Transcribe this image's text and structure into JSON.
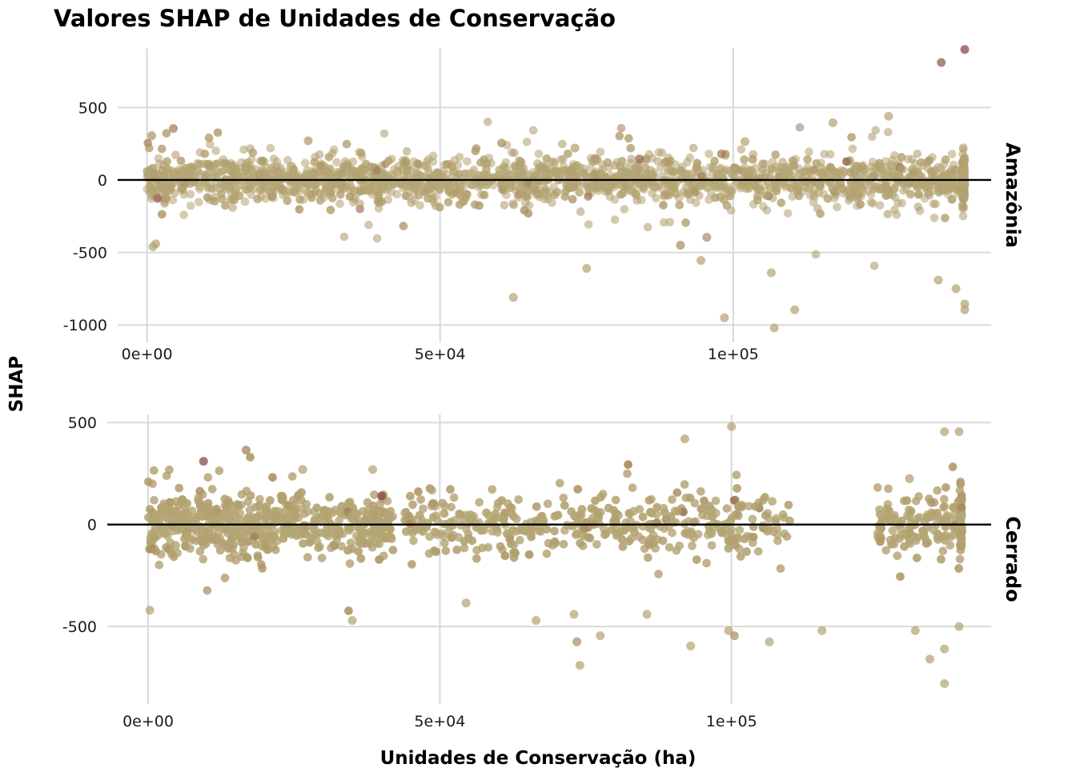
{
  "chart_data": {
    "type": "scatter",
    "title": "Valores SHAP de Unidades de Conservação",
    "xlabel": "Unidades de Conservação (ha)",
    "ylabel": "SHAP",
    "grid": true,
    "zero_line": true,
    "colors": {
      "low": "#b5a775",
      "mid": "#a88a5c",
      "high": "#7a2e3a"
    },
    "panels": [
      {
        "name": "Amazônia",
        "xlim": [
          -5000,
          144000
        ],
        "ylim": [
          -1120,
          910
        ],
        "x_ticks": [
          0,
          50000,
          100000
        ],
        "x_tick_labels": [
          "0e+00",
          "5e+04",
          "1e+05"
        ],
        "y_ticks": [
          -1000,
          -500,
          0,
          500
        ],
        "y_tick_labels": [
          "-1000",
          "-500",
          "0",
          "500"
        ],
        "highlight_points": [
          {
            "x": 139500,
            "y": 900,
            "c": 0.9
          },
          {
            "x": 135500,
            "y": 810,
            "c": 0.8
          },
          {
            "x": 126500,
            "y": 440,
            "c": 0.1
          },
          {
            "x": 117000,
            "y": 395,
            "c": 0.1
          },
          {
            "x": 4500,
            "y": 355,
            "c": 0.6
          },
          {
            "x": 800,
            "y": 305,
            "c": 0.4
          },
          {
            "x": 27500,
            "y": 270,
            "c": 0.3
          },
          {
            "x": 60500,
            "y": 255,
            "c": 0.5
          },
          {
            "x": 102000,
            "y": 265,
            "c": 0.1
          },
          {
            "x": 98000,
            "y": 180,
            "c": 0.6
          },
          {
            "x": 84000,
            "y": 145,
            "c": 0.7
          },
          {
            "x": 73000,
            "y": 220,
            "c": 0.2
          },
          {
            "x": 62500,
            "y": -810,
            "c": 0.1
          },
          {
            "x": 107000,
            "y": -1020,
            "c": 0.1
          },
          {
            "x": 98500,
            "y": -950,
            "c": 0.1
          },
          {
            "x": 110500,
            "y": -895,
            "c": 0.1
          },
          {
            "x": 139500,
            "y": -895,
            "c": 0.1
          },
          {
            "x": 139500,
            "y": -855,
            "c": 0.1
          },
          {
            "x": 138000,
            "y": -750,
            "c": 0.1
          },
          {
            "x": 135000,
            "y": -690,
            "c": 0.1
          },
          {
            "x": 106500,
            "y": -640,
            "c": 0.1
          },
          {
            "x": 75000,
            "y": -610,
            "c": 0.1
          },
          {
            "x": 94500,
            "y": -555,
            "c": 0.1
          },
          {
            "x": 1000,
            "y": -460,
            "c": 0.1
          },
          {
            "x": 1500,
            "y": -440,
            "c": 0.1
          },
          {
            "x": 91000,
            "y": -450,
            "c": 0.5
          },
          {
            "x": 95500,
            "y": -395,
            "c": 0.5
          }
        ]
      },
      {
        "name": "Cerrado",
        "xlim": [
          -7000,
          144500
        ],
        "ylim": [
          -880,
          540
        ],
        "x_ticks": [
          0,
          50000,
          100000
        ],
        "x_tick_labels": [
          "0e+00",
          "5e+04",
          "1e+05"
        ],
        "y_ticks": [
          -500,
          0,
          500
        ],
        "y_tick_labels": [
          "-500",
          "0",
          "500"
        ],
        "highlight_points": [
          {
            "x": 100000,
            "y": 480,
            "c": 0.1
          },
          {
            "x": 92000,
            "y": 420,
            "c": 0.2
          },
          {
            "x": 136500,
            "y": 455,
            "c": 0.1
          },
          {
            "x": 139000,
            "y": 455,
            "c": 0.1
          },
          {
            "x": 16800,
            "y": 365,
            "c": 0.6
          },
          {
            "x": 9500,
            "y": 310,
            "c": 0.9
          },
          {
            "x": 40000,
            "y": 140,
            "c": 0.9
          },
          {
            "x": 130500,
            "y": 225,
            "c": 0.2
          },
          {
            "x": 26500,
            "y": 270,
            "c": 0.2
          },
          {
            "x": 38500,
            "y": 270,
            "c": 0.1
          },
          {
            "x": 136500,
            "y": -780,
            "c": 0.1
          },
          {
            "x": 74000,
            "y": -690,
            "c": 0.1
          },
          {
            "x": 134000,
            "y": -660,
            "c": 0.1
          },
          {
            "x": 136500,
            "y": -610,
            "c": 0.1
          },
          {
            "x": 93000,
            "y": -595,
            "c": 0.1
          },
          {
            "x": 73500,
            "y": -575,
            "c": 0.5
          },
          {
            "x": 106500,
            "y": -575,
            "c": 0.1
          },
          {
            "x": 100500,
            "y": -545,
            "c": 0.5
          },
          {
            "x": 77500,
            "y": -545,
            "c": 0.1
          },
          {
            "x": 99500,
            "y": -520,
            "c": 0.1
          },
          {
            "x": 115500,
            "y": -520,
            "c": 0.1
          },
          {
            "x": 131500,
            "y": -520,
            "c": 0.1
          },
          {
            "x": 139000,
            "y": -500,
            "c": 0.1
          },
          {
            "x": 35000,
            "y": -470,
            "c": 0.1
          },
          {
            "x": 66500,
            "y": -470,
            "c": 0.1
          },
          {
            "x": 85500,
            "y": -440,
            "c": 0.1
          },
          {
            "x": 73000,
            "y": -440,
            "c": 0.1
          },
          {
            "x": 300,
            "y": -420,
            "c": 0.1
          },
          {
            "x": 54500,
            "y": -385,
            "c": 0.1
          }
        ]
      }
    ]
  }
}
